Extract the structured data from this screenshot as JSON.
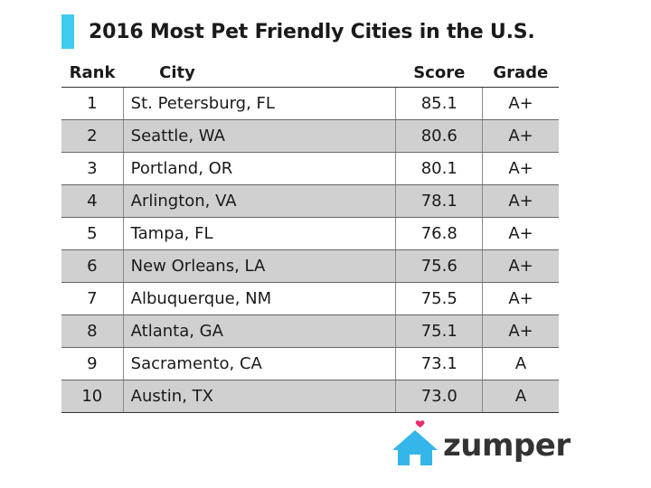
{
  "title": "2016 Most Pet Friendly Cities in the U.S.",
  "colors": {
    "accent": "#3ecbf0",
    "text": "#1a1a1a",
    "row_shade": "#d0d0d0",
    "logo_house": "#35b6ea",
    "logo_heart": "#e8306c",
    "logo_text": "#333333"
  },
  "table": {
    "headers": {
      "rank": "Rank",
      "city": "City",
      "score": "Score",
      "grade": "Grade"
    },
    "rows": [
      {
        "rank": "1",
        "city": "St. Petersburg, FL",
        "score": "85.1",
        "grade": "A+"
      },
      {
        "rank": "2",
        "city": "Seattle, WA",
        "score": "80.6",
        "grade": "A+"
      },
      {
        "rank": "3",
        "city": "Portland, OR",
        "score": "80.1",
        "grade": "A+"
      },
      {
        "rank": "4",
        "city": "Arlington, VA",
        "score": "78.1",
        "grade": "A+"
      },
      {
        "rank": "5",
        "city": "Tampa, FL",
        "score": "76.8",
        "grade": "A+"
      },
      {
        "rank": "6",
        "city": "New Orleans, LA",
        "score": "75.6",
        "grade": "A+"
      },
      {
        "rank": "7",
        "city": "Albuquerque, NM",
        "score": "75.5",
        "grade": "A+"
      },
      {
        "rank": "8",
        "city": "Atlanta, GA",
        "score": "75.1",
        "grade": "A+"
      },
      {
        "rank": "9",
        "city": "Sacramento, CA",
        "score": "73.1",
        "grade": "A"
      },
      {
        "rank": "10",
        "city": "Austin, TX",
        "score": "73.0",
        "grade": "A"
      }
    ]
  },
  "logo": {
    "text": "zumper",
    "icon": "house-heart-icon"
  }
}
